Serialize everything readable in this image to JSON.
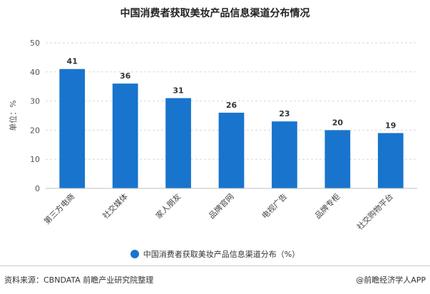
{
  "chart_data": {
    "type": "bar",
    "title": "中国消费者获取美妆产品信息渠道分布情况",
    "ylabel": "单位：%",
    "xlabel": "",
    "categories": [
      "第三方电商",
      "社交媒体",
      "家人朋友",
      "品牌官网",
      "电视广告",
      "品牌专柜",
      "社交购物平台"
    ],
    "series": [
      {
        "name": "中国消费者获取美妆产品信息渠道分布（%）",
        "values": [
          41,
          36,
          31,
          26,
          23,
          20,
          19
        ]
      }
    ],
    "ylim": [
      0,
      50
    ],
    "yticks": [
      0,
      10,
      20,
      30,
      40,
      50
    ],
    "grid": true,
    "legend_position": "bottom",
    "bar_color": "#1874cd"
  },
  "footer": {
    "source": "资料来源：CBNDATA 前瞻产业研究院整理",
    "credit": "@前瞻经济学人APP"
  }
}
